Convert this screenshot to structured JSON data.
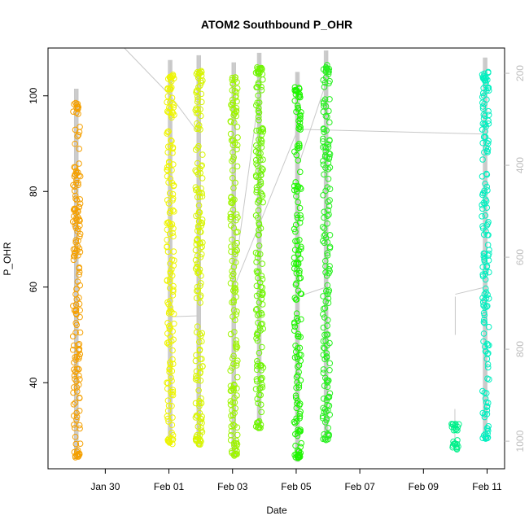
{
  "chart_data": {
    "type": "scatter",
    "title": "ATOM2 Southbound P_OHR",
    "xlabel": "Date",
    "ylabel": "P_OHR",
    "x_ticks": [
      "Jan 30",
      "Feb 01",
      "Feb 03",
      "Feb 05",
      "Feb 07",
      "Feb 09",
      "Feb 11"
    ],
    "x_tick_days": [
      30,
      32,
      34,
      36,
      38,
      40,
      42
    ],
    "xlim_days": [
      28.2,
      42.55
    ],
    "y_ticks": [
      40,
      60,
      80,
      100
    ],
    "ylim": [
      22,
      110
    ],
    "y2_ticks": [
      "200",
      "400",
      "600",
      "800",
      "1000"
    ],
    "y2_tick_values": [
      200,
      400,
      600,
      800,
      1000
    ],
    "y2lim": [
      1060,
      145
    ],
    "grid": false,
    "legend": "none",
    "track_color": "#c8c8c8",
    "profiles": [
      {
        "day": 29.1,
        "color": "#f5a000",
        "ymin": 24,
        "ymax": 98.5
      },
      {
        "day": 32.05,
        "color": "#eef500",
        "ymin": 27,
        "ymax": 104.5
      },
      {
        "day": 32.95,
        "color": "#d8f500",
        "ymin": 27,
        "ymax": 105.5
      },
      {
        "day": 34.05,
        "color": "#9ef500",
        "ymin": 24.5,
        "ymax": 104
      },
      {
        "day": 34.85,
        "color": "#6ef500",
        "ymin": 30.5,
        "ymax": 106
      },
      {
        "day": 36.05,
        "color": "#1ef500",
        "ymin": 23.5,
        "ymax": 102
      },
      {
        "day": 36.95,
        "color": "#28f020",
        "ymin": 28,
        "ymax": 106.5
      },
      {
        "day": 41.0,
        "color": "#00f08a",
        "ymin": 26,
        "ymax": 31.5
      },
      {
        "day": 41.95,
        "color": "#00f0c0",
        "ymin": 28,
        "ymax": 105
      }
    ]
  }
}
